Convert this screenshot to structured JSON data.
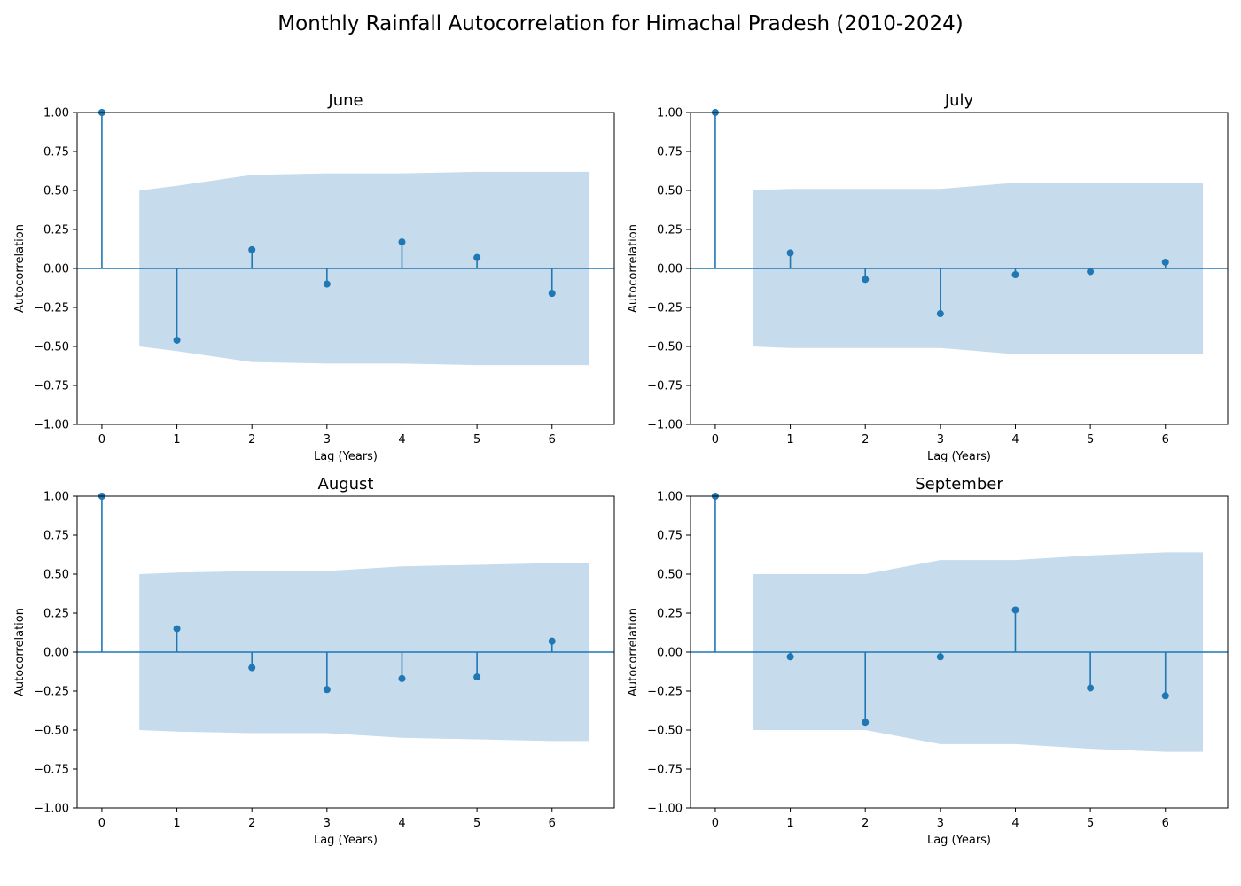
{
  "figure": {
    "title": "Monthly Rainfall Autocorrelation for Himachal Pradesh (2010-2024)"
  },
  "colors": {
    "stem": "#1f77b4",
    "confidence_band": "#c6dbec",
    "axes": "#000000",
    "background": "#ffffff"
  },
  "chart_data": [
    {
      "type": "stem",
      "title": "June",
      "xlabel": "Lag (Years)",
      "ylabel": "Autocorrelation",
      "xlim": [
        -0.33,
        6.83
      ],
      "ylim": [
        -1.0,
        1.0
      ],
      "xticks": [
        0,
        1,
        2,
        3,
        4,
        5,
        6
      ],
      "yticks": [
        -1.0,
        -0.75,
        -0.5,
        -0.25,
        0.0,
        0.25,
        0.5,
        0.75,
        1.0
      ],
      "lags": [
        0,
        1,
        2,
        3,
        4,
        5,
        6
      ],
      "values": [
        1.0,
        -0.46,
        0.12,
        -0.1,
        0.17,
        0.07,
        -0.16
      ],
      "confidence_band": {
        "x": [
          0.5,
          1,
          2,
          3,
          4,
          5,
          6,
          6.5
        ],
        "upper": [
          0.5,
          0.53,
          0.6,
          0.61,
          0.61,
          0.62,
          0.62,
          0.62
        ]
      },
      "grid": false
    },
    {
      "type": "stem",
      "title": "July",
      "xlabel": "Lag (Years)",
      "ylabel": "Autocorrelation",
      "xlim": [
        -0.33,
        6.83
      ],
      "ylim": [
        -1.0,
        1.0
      ],
      "xticks": [
        0,
        1,
        2,
        3,
        4,
        5,
        6
      ],
      "yticks": [
        -1.0,
        -0.75,
        -0.5,
        -0.25,
        0.0,
        0.25,
        0.5,
        0.75,
        1.0
      ],
      "lags": [
        0,
        1,
        2,
        3,
        4,
        5,
        6
      ],
      "values": [
        1.0,
        0.1,
        -0.07,
        -0.29,
        -0.04,
        -0.02,
        0.04
      ],
      "confidence_band": {
        "x": [
          0.5,
          1,
          2,
          3,
          4,
          5,
          6,
          6.5
        ],
        "upper": [
          0.5,
          0.51,
          0.51,
          0.51,
          0.55,
          0.55,
          0.55,
          0.55
        ]
      },
      "grid": false
    },
    {
      "type": "stem",
      "title": "August",
      "xlabel": "Lag (Years)",
      "ylabel": "Autocorrelation",
      "xlim": [
        -0.33,
        6.83
      ],
      "ylim": [
        -1.0,
        1.0
      ],
      "xticks": [
        0,
        1,
        2,
        3,
        4,
        5,
        6
      ],
      "yticks": [
        -1.0,
        -0.75,
        -0.5,
        -0.25,
        0.0,
        0.25,
        0.5,
        0.75,
        1.0
      ],
      "lags": [
        0,
        1,
        2,
        3,
        4,
        5,
        6
      ],
      "values": [
        1.0,
        0.15,
        -0.1,
        -0.24,
        -0.17,
        -0.16,
        0.07
      ],
      "confidence_band": {
        "x": [
          0.5,
          1,
          2,
          3,
          4,
          5,
          6,
          6.5
        ],
        "upper": [
          0.5,
          0.51,
          0.52,
          0.52,
          0.55,
          0.56,
          0.57,
          0.57
        ]
      },
      "grid": false
    },
    {
      "type": "stem",
      "title": "September",
      "xlabel": "Lag (Years)",
      "ylabel": "Autocorrelation",
      "xlim": [
        -0.33,
        6.83
      ],
      "ylim": [
        -1.0,
        1.0
      ],
      "xticks": [
        0,
        1,
        2,
        3,
        4,
        5,
        6
      ],
      "yticks": [
        -1.0,
        -0.75,
        -0.5,
        -0.25,
        0.0,
        0.25,
        0.5,
        0.75,
        1.0
      ],
      "lags": [
        0,
        1,
        2,
        3,
        4,
        5,
        6
      ],
      "values": [
        1.0,
        -0.03,
        -0.45,
        -0.03,
        0.27,
        -0.23,
        -0.28
      ],
      "confidence_band": {
        "x": [
          0.5,
          1,
          2,
          3,
          4,
          5,
          6,
          6.5
        ],
        "upper": [
          0.5,
          0.5,
          0.5,
          0.59,
          0.59,
          0.62,
          0.64,
          0.64
        ]
      },
      "grid": false
    }
  ]
}
